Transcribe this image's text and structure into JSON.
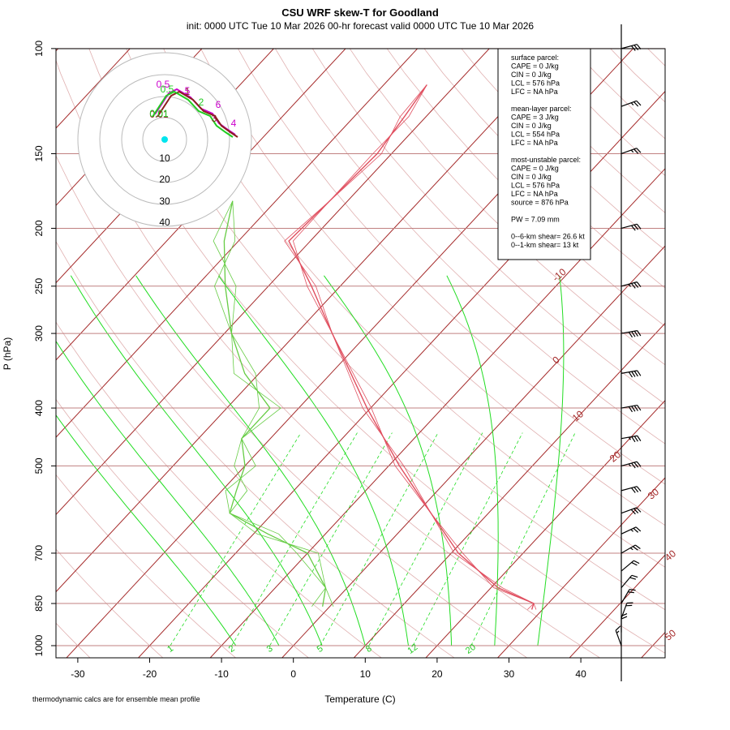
{
  "title": "CSU WRF skew-T for Goodland",
  "subtitle": "init: 0000 UTC Tue 10 Mar 2026     00-hr forecast valid 0000 UTC Tue 10 Mar 2026",
  "footnote": "thermodynamic calcs are for ensemble mean profile",
  "colors": {
    "isotherm": "#a52a2a",
    "isobar": "#c08080",
    "dry_adiabat_faint": "#e0b0b0",
    "moist_adiabat": "#22dd22",
    "mixing_ratio": "#22dd22",
    "temperature": "#e05060",
    "dewpoint": "#66cc44",
    "hodo_magenta": "#cc00cc",
    "hodo_brown": "#8b2020",
    "hodo_green": "#22cc22",
    "hodo_cyan": "#00e5ee"
  },
  "info_box": {
    "lines": [
      "surface parcel:",
      "CAPE = 0 J/kg",
      "CIN = 0 J/kg",
      "LCL = 576 hPa",
      "LFC = NA hPa",
      "",
      "mean-layer parcel:",
      "CAPE = 3 J/kg",
      "CIN = 0 J/kg",
      "LCL = 554 hPa",
      "LFC = NA hPa",
      "",
      "most-unstable parcel:",
      "CAPE = 0 J/kg",
      "CIN = 0 J/kg",
      "LCL = 576 hPa",
      "LFC = NA hPa",
      "source = 876 hPa",
      "",
      "PW =  7.09 mm",
      "",
      "0--6-km shear= 26.6 kt",
      "0--1-km shear= 13 kt"
    ]
  },
  "hodograph": {
    "ring_labels": [
      "10",
      "20",
      "30",
      "40"
    ],
    "height_labels": [
      "0.5",
      "0.5",
      "1",
      "2",
      "3",
      "4",
      "5",
      "6",
      "0.01",
      "0.01"
    ]
  },
  "chart_data": {
    "type": "skew-t",
    "xlabel": "Temperature (C)",
    "ylabel": "P (hPa)",
    "x_ticks": [
      -30,
      -20,
      -10,
      0,
      10,
      20,
      30,
      40
    ],
    "y_ticks": [
      100,
      150,
      200,
      250,
      300,
      400,
      500,
      700,
      850,
      1000
    ],
    "isotherm_labels": [
      -10,
      0,
      10,
      20,
      30,
      40,
      50
    ],
    "mixing_ratio_labels": [
      "1",
      "2",
      "3",
      "5",
      "8",
      "12",
      "20"
    ],
    "pressure_range": [
      1000,
      100
    ],
    "temperature_range": [
      -33,
      45
    ],
    "series": [
      {
        "name": "temperature",
        "points": [
          {
            "p": 870,
            "t": 28.5
          },
          {
            "p": 850,
            "t": 28.0
          },
          {
            "p": 800,
            "t": 21.0
          },
          {
            "p": 700,
            "t": 11.0
          },
          {
            "p": 600,
            "t": 2.0
          },
          {
            "p": 500,
            "t": -8.5
          },
          {
            "p": 400,
            "t": -20.5
          },
          {
            "p": 300,
            "t": -35.0
          },
          {
            "p": 250,
            "t": -44.0
          },
          {
            "p": 210,
            "t": -53.0
          },
          {
            "p": 180,
            "t": -52.5
          },
          {
            "p": 150,
            "t": -52.0
          },
          {
            "p": 130,
            "t": -53.0
          },
          {
            "p": 115,
            "t": -54.0
          }
        ]
      },
      {
        "name": "dewpoint",
        "points": [
          {
            "p": 860,
            "t": -1.0
          },
          {
            "p": 800,
            "t": -3.0
          },
          {
            "p": 700,
            "t": -10.0
          },
          {
            "p": 650,
            "t": -18.0
          },
          {
            "p": 600,
            "t": -26.0
          },
          {
            "p": 550,
            "t": -28.0
          },
          {
            "p": 500,
            "t": -30.0
          },
          {
            "p": 450,
            "t": -34.0
          },
          {
            "p": 400,
            "t": -34.0
          },
          {
            "p": 350,
            "t": -42.0
          },
          {
            "p": 300,
            "t": -49.0
          },
          {
            "p": 250,
            "t": -56.0
          },
          {
            "p": 210,
            "t": -62.0
          },
          {
            "p": 180,
            "t": -66.0
          }
        ]
      }
    ],
    "wind_barbs": [
      {
        "p": 1000,
        "speed_kt": 15,
        "dir_deg": 160
      },
      {
        "p": 950,
        "speed_kt": 20,
        "dir_deg": 180
      },
      {
        "p": 900,
        "speed_kt": 20,
        "dir_deg": 200
      },
      {
        "p": 850,
        "speed_kt": 20,
        "dir_deg": 210
      },
      {
        "p": 800,
        "speed_kt": 20,
        "dir_deg": 220
      },
      {
        "p": 750,
        "speed_kt": 20,
        "dir_deg": 230
      },
      {
        "p": 700,
        "speed_kt": 25,
        "dir_deg": 240
      },
      {
        "p": 650,
        "speed_kt": 25,
        "dir_deg": 245
      },
      {
        "p": 600,
        "speed_kt": 30,
        "dir_deg": 250
      },
      {
        "p": 550,
        "speed_kt": 30,
        "dir_deg": 255
      },
      {
        "p": 500,
        "speed_kt": 35,
        "dir_deg": 255
      },
      {
        "p": 450,
        "speed_kt": 35,
        "dir_deg": 260
      },
      {
        "p": 400,
        "speed_kt": 40,
        "dir_deg": 260
      },
      {
        "p": 350,
        "speed_kt": 40,
        "dir_deg": 260
      },
      {
        "p": 300,
        "speed_kt": 40,
        "dir_deg": 260
      },
      {
        "p": 250,
        "speed_kt": 35,
        "dir_deg": 255
      },
      {
        "p": 200,
        "speed_kt": 30,
        "dir_deg": 255
      },
      {
        "p": 150,
        "speed_kt": 25,
        "dir_deg": 250
      },
      {
        "p": 125,
        "speed_kt": 25,
        "dir_deg": 250
      },
      {
        "p": 100,
        "speed_kt": 30,
        "dir_deg": 255
      }
    ]
  }
}
